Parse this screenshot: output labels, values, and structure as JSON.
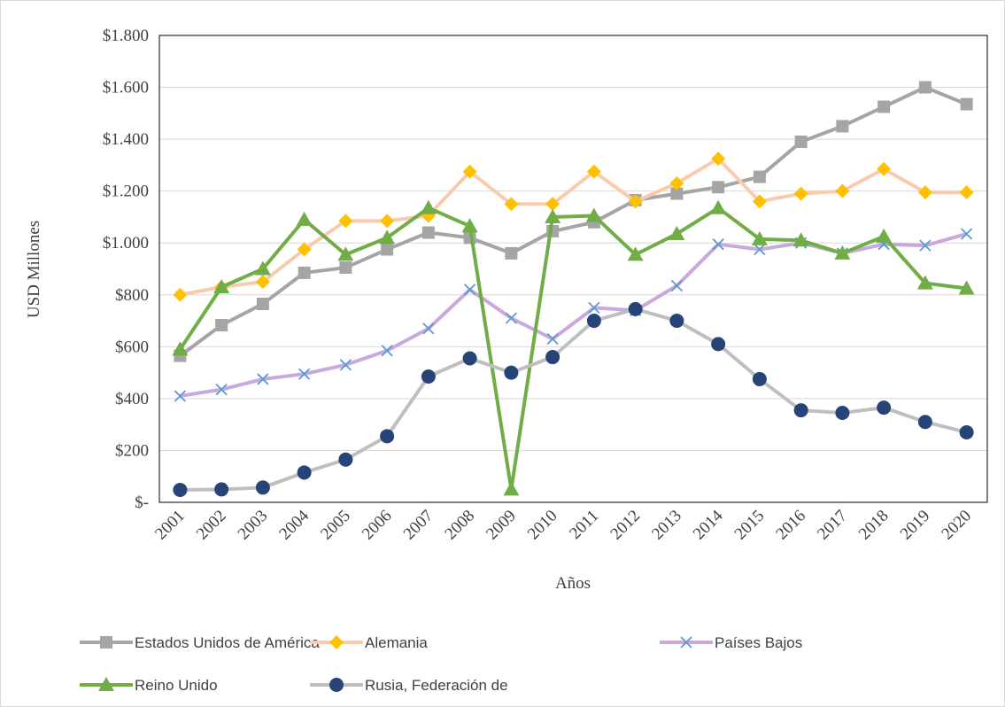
{
  "chart_data": {
    "type": "line",
    "xlabel": "Años",
    "ylabel": "USD Millones",
    "categories": [
      "2001",
      "2002",
      "2003",
      "2004",
      "2005",
      "2006",
      "2007",
      "2008",
      "2009",
      "2010",
      "2011",
      "2012",
      "2013",
      "2014",
      "2015",
      "2016",
      "2017",
      "2018",
      "2019",
      "2020"
    ],
    "series": [
      {
        "name": "Estados Unidos de América",
        "color": "#a5a5a5",
        "marker_color": "#a5a5a5",
        "marker": "square",
        "values": [
          565,
          683,
          765,
          885,
          905,
          975,
          1040,
          1020,
          960,
          1045,
          1080,
          1165,
          1190,
          1215,
          1255,
          1390,
          1450,
          1525,
          1600,
          1535
        ]
      },
      {
        "name": "Alemania",
        "color": "#f8cbad",
        "marker_color": "#ffc000",
        "marker": "diamond",
        "values": [
          800,
          830,
          850,
          975,
          1085,
          1085,
          1105,
          1275,
          1150,
          1150,
          1275,
          1160,
          1230,
          1325,
          1160,
          1190,
          1200,
          1285,
          1195,
          1195
        ]
      },
      {
        "name": "Países Bajos",
        "color": "#c9a9dd",
        "marker_color": "#5b9bd5",
        "marker": "x",
        "values": [
          410,
          435,
          475,
          495,
          530,
          585,
          670,
          820,
          710,
          630,
          750,
          740,
          835,
          995,
          975,
          1000,
          960,
          995,
          990,
          1035
        ]
      },
      {
        "name": "Reino Unido",
        "color": "#70ad47",
        "marker_color": "#70ad47",
        "marker": "triangle",
        "values": [
          590,
          830,
          900,
          1090,
          955,
          1020,
          1135,
          1065,
          50,
          1100,
          1105,
          955,
          1035,
          1135,
          1015,
          1010,
          960,
          1025,
          845,
          825
        ]
      },
      {
        "name": "Rusia, Federación de",
        "color": "#bfbfbf",
        "marker_color": "#264478",
        "marker": "circle",
        "values": [
          48,
          50,
          57,
          115,
          165,
          255,
          485,
          555,
          500,
          560,
          700,
          745,
          700,
          610,
          475,
          355,
          345,
          365,
          310,
          270
        ]
      }
    ],
    "ylim": [
      0,
      1800
    ],
    "yticks": [
      {
        "value": 0,
        "label": "$-"
      },
      {
        "value": 200,
        "label": "$200"
      },
      {
        "value": 400,
        "label": "$400"
      },
      {
        "value": 600,
        "label": "$600"
      },
      {
        "value": 800,
        "label": "$800"
      },
      {
        "value": 1000,
        "label": "$1.000"
      },
      {
        "value": 1200,
        "label": "$1.200"
      },
      {
        "value": 1400,
        "label": "$1.400"
      },
      {
        "value": 1600,
        "label": "$1.600"
      },
      {
        "value": 1800,
        "label": "$1.800"
      }
    ],
    "grid": true,
    "legend": "bottom"
  }
}
